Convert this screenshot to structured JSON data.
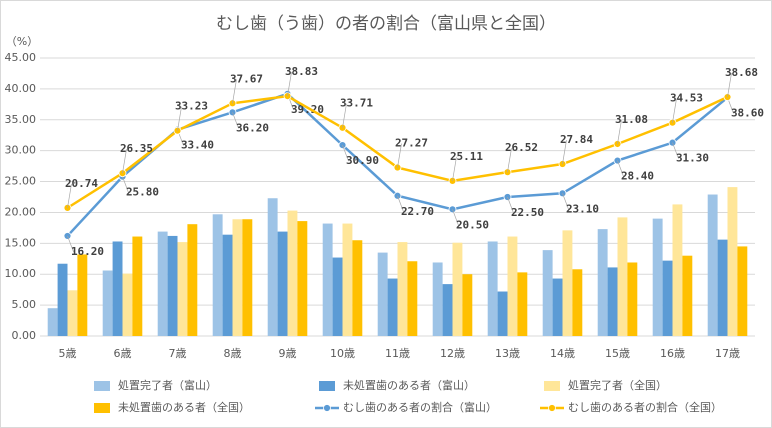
{
  "chart_data": {
    "type": "bar",
    "title": "むし歯（う歯）の者の割合（富山県と全国）",
    "y_label": "（%）",
    "categories": [
      "5歳",
      "6歳",
      "7歳",
      "8歳",
      "9歳",
      "10歳",
      "11歳",
      "12歳",
      "13歳",
      "14歳",
      "15歳",
      "16歳",
      "17歳"
    ],
    "ylim": [
      0,
      45
    ],
    "yticks": [
      {
        "value": 0,
        "label": "0.00"
      },
      {
        "value": 5,
        "label": "5.00"
      },
      {
        "value": 10,
        "label": "10.00"
      },
      {
        "value": 15,
        "label": "15.00"
      },
      {
        "value": 20,
        "label": "20.00"
      },
      {
        "value": 25,
        "label": "25.00"
      },
      {
        "value": 30,
        "label": "30.00"
      },
      {
        "value": 35,
        "label": "35.00"
      },
      {
        "value": 40,
        "label": "40.00"
      },
      {
        "value": 45,
        "label": "45.00"
      }
    ],
    "grid": true,
    "series": [
      {
        "name": "処置完了者（富山）",
        "color": "#9dc3e6",
        "type": "bar",
        "values": [
          4.5,
          10.6,
          16.9,
          19.7,
          22.3,
          18.2,
          13.5,
          11.9,
          15.3,
          13.9,
          17.3,
          19.0,
          22.9
        ]
      },
      {
        "name": "未処置歯のある者（富山）",
        "color": "#5b9bd5",
        "type": "bar",
        "values": [
          11.7,
          15.3,
          16.2,
          16.4,
          16.9,
          12.7,
          9.3,
          8.4,
          7.2,
          9.3,
          11.1,
          12.2,
          15.6
        ]
      },
      {
        "name": "処置完了者（全国）",
        "color": "#ffe699",
        "type": "bar",
        "values": [
          7.4,
          10.1,
          15.2,
          18.9,
          20.3,
          18.2,
          15.2,
          15.1,
          16.1,
          17.1,
          19.2,
          21.3,
          24.1
        ]
      },
      {
        "name": "未処置歯のある者（全国）",
        "color": "#ffc000",
        "type": "bar",
        "values": [
          13.2,
          16.1,
          18.1,
          18.9,
          18.6,
          15.5,
          12.1,
          10.0,
          10.3,
          10.8,
          11.9,
          13.0,
          14.5
        ]
      },
      {
        "name": "むし歯のある者の割合（富山）",
        "color": "#5b9bd5",
        "type": "line",
        "values": [
          16.2,
          25.8,
          33.4,
          36.2,
          39.2,
          30.9,
          22.7,
          20.5,
          22.5,
          23.1,
          28.4,
          31.3,
          38.6
        ],
        "value_labels": [
          "16.20",
          "25.80",
          "33.40",
          "36.20",
          "39.20",
          "30.90",
          "22.70",
          "20.50",
          "22.50",
          "23.10",
          "28.40",
          "31.30",
          "38.60"
        ]
      },
      {
        "name": "むし歯のある者の割合（全国）",
        "color": "#ffc000",
        "type": "line",
        "values": [
          20.74,
          26.35,
          33.23,
          37.67,
          38.83,
          33.71,
          27.27,
          25.11,
          26.52,
          27.84,
          31.08,
          34.53,
          38.68
        ],
        "value_labels": [
          "20.74",
          "26.35",
          "33.23",
          "37.67",
          "38.83",
          "33.71",
          "27.27",
          "25.11",
          "26.52",
          "27.84",
          "31.08",
          "34.53",
          "38.68"
        ]
      }
    ]
  }
}
